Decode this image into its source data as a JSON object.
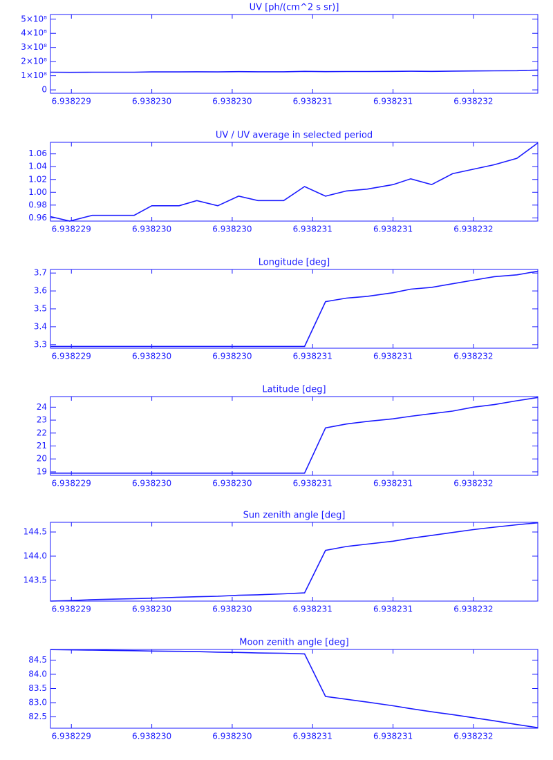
{
  "chart_data": [
    {
      "type": "line",
      "title": "UV [ph/(cm^2 s sr)]",
      "color": "#1a1aff",
      "x": [
        6.93822912,
        6.93822924,
        6.93822938,
        6.93822951,
        6.93822964,
        6.93822975,
        6.93822992,
        6.93823003,
        6.93823016,
        6.93823029,
        6.93823041,
        6.93823057,
        6.9382307,
        6.93823083,
        6.93823096,
        6.93823109,
        6.93823125,
        6.93823136,
        6.93823149,
        6.93823162,
        6.93823175,
        6.93823188,
        6.93823202,
        6.93823215
      ],
      "values": [
        125000000,
        124000000,
        125000000,
        125000000,
        125000000,
        127000000,
        127000000,
        128000000,
        127000000,
        129000000,
        128000000,
        128000000,
        131000000,
        129000000,
        130000000,
        130000000,
        131000000,
        132000000,
        131000000,
        133000000,
        134000000,
        135000000,
        136000000,
        140000000
      ],
      "xlim": [
        6.93822912,
        6.93823215
      ],
      "ylim": [
        -24000000,
        533000000
      ],
      "xticks": [
        {
          "value": 6.93822925,
          "label": "6.938229"
        },
        {
          "value": 6.93822975,
          "label": "6.938230"
        },
        {
          "value": 6.93823025,
          "label": "6.938230"
        },
        {
          "value": 6.93823075,
          "label": "6.938231"
        },
        {
          "value": 6.93823125,
          "label": "6.938231"
        },
        {
          "value": 6.93823175,
          "label": "6.938232"
        }
      ],
      "yticks": [
        0,
        {
          "value": 100000000,
          "label": "1×10⁸"
        },
        {
          "value": 200000000,
          "label": "2×10⁸"
        },
        {
          "value": 300000000,
          "label": "3×10⁸"
        },
        {
          "value": 400000000,
          "label": "4×10⁸"
        },
        {
          "value": 500000000,
          "label": "5×10⁸"
        }
      ]
    },
    {
      "type": "line",
      "title": "UV / UV average in selected period",
      "color": "#1a1aff",
      "x": [
        6.93822912,
        6.93822924,
        6.93822938,
        6.93822951,
        6.93822964,
        6.93822975,
        6.93822992,
        6.93823003,
        6.93823016,
        6.93823029,
        6.93823041,
        6.93823057,
        6.9382307,
        6.93823083,
        6.93823096,
        6.93823109,
        6.93823125,
        6.93823136,
        6.93823149,
        6.93823162,
        6.93823175,
        6.93823188,
        6.93823202,
        6.93823215
      ],
      "values": [
        0.962,
        0.955,
        0.964,
        0.964,
        0.964,
        0.979,
        0.979,
        0.987,
        0.979,
        0.994,
        0.987,
        0.987,
        1.009,
        0.994,
        1.002,
        1.005,
        1.012,
        1.021,
        1.012,
        1.029,
        1.036,
        1.043,
        1.053,
        1.077
      ],
      "xlim": [
        6.93822912,
        6.93823215
      ],
      "ylim": [
        0.955,
        1.078
      ],
      "xticks": [
        {
          "value": 6.93822925,
          "label": "6.938229"
        },
        {
          "value": 6.93822975,
          "label": "6.938230"
        },
        {
          "value": 6.93823025,
          "label": "6.938230"
        },
        {
          "value": 6.93823075,
          "label": "6.938231"
        },
        {
          "value": 6.93823125,
          "label": "6.938231"
        },
        {
          "value": 6.93823175,
          "label": "6.938232"
        }
      ],
      "yticks": [
        {
          "value": 0.96,
          "label": "0.96"
        },
        {
          "value": 0.98,
          "label": "0.98"
        },
        {
          "value": 1.0,
          "label": "1.00"
        },
        {
          "value": 1.02,
          "label": "1.02"
        },
        {
          "value": 1.04,
          "label": "1.04"
        },
        {
          "value": 1.06,
          "label": "1.06"
        }
      ]
    },
    {
      "type": "line",
      "title": "Longitude [deg]",
      "color": "#1a1aff",
      "x": [
        6.93822912,
        6.93822924,
        6.93822938,
        6.93822951,
        6.93822964,
        6.93822975,
        6.93822992,
        6.93823003,
        6.93823016,
        6.93823029,
        6.93823041,
        6.93823057,
        6.9382307,
        6.93823083,
        6.93823096,
        6.93823109,
        6.93823125,
        6.93823136,
        6.93823149,
        6.93823162,
        6.93823175,
        6.93823188,
        6.93823202,
        6.93823215
      ],
      "values": [
        3.29,
        3.29,
        3.29,
        3.29,
        3.29,
        3.29,
        3.29,
        3.29,
        3.29,
        3.29,
        3.29,
        3.29,
        3.29,
        3.54,
        3.56,
        3.57,
        3.59,
        3.61,
        3.62,
        3.64,
        3.66,
        3.68,
        3.69,
        3.71
      ],
      "xlim": [
        6.93822912,
        6.93823215
      ],
      "ylim": [
        3.28,
        3.72
      ],
      "xticks": [
        {
          "value": 6.93822925,
          "label": "6.938229"
        },
        {
          "value": 6.93822975,
          "label": "6.938230"
        },
        {
          "value": 6.93823025,
          "label": "6.938230"
        },
        {
          "value": 6.93823075,
          "label": "6.938231"
        },
        {
          "value": 6.93823125,
          "label": "6.938231"
        },
        {
          "value": 6.93823175,
          "label": "6.938232"
        }
      ],
      "yticks": [
        3.3,
        3.4,
        3.5,
        3.6,
        3.7
      ]
    },
    {
      "type": "line",
      "title": "Latitude [deg]",
      "color": "#1a1aff",
      "x": [
        6.93822912,
        6.93822924,
        6.93822938,
        6.93822951,
        6.93822964,
        6.93822975,
        6.93822992,
        6.93823003,
        6.93823016,
        6.93823029,
        6.93823041,
        6.93823057,
        6.9382307,
        6.93823083,
        6.93823096,
        6.93823109,
        6.93823125,
        6.93823136,
        6.93823149,
        6.93823162,
        6.93823175,
        6.93823188,
        6.93823202,
        6.93823215
      ],
      "values": [
        18.9,
        18.9,
        18.9,
        18.9,
        18.9,
        18.9,
        18.9,
        18.9,
        18.9,
        18.9,
        18.9,
        18.9,
        18.9,
        22.4,
        22.7,
        22.9,
        23.1,
        23.3,
        23.5,
        23.7,
        24.0,
        24.2,
        24.5,
        24.75
      ],
      "xlim": [
        6.93822912,
        6.93823215
      ],
      "ylim": [
        18.73,
        24.82
      ],
      "xticks": [
        {
          "value": 6.93822925,
          "label": "6.938229"
        },
        {
          "value": 6.93822975,
          "label": "6.938230"
        },
        {
          "value": 6.93823025,
          "label": "6.938230"
        },
        {
          "value": 6.93823075,
          "label": "6.938231"
        },
        {
          "value": 6.93823125,
          "label": "6.938231"
        },
        {
          "value": 6.93823175,
          "label": "6.938232"
        }
      ],
      "yticks": [
        19,
        20,
        21,
        22,
        23,
        24
      ]
    },
    {
      "type": "line",
      "title": "Sun zenith angle [deg]",
      "color": "#1a1aff",
      "x": [
        6.93822912,
        6.93822924,
        6.93822938,
        6.93822951,
        6.93822964,
        6.93822975,
        6.93822992,
        6.93823003,
        6.93823016,
        6.93823029,
        6.93823041,
        6.93823057,
        6.9382307,
        6.93823083,
        6.93823096,
        6.93823109,
        6.93823125,
        6.93823136,
        6.93823149,
        6.93823162,
        6.93823175,
        6.93823188,
        6.93823202,
        6.93823215
      ],
      "values": [
        143.07,
        143.08,
        143.1,
        143.11,
        143.12,
        143.13,
        143.15,
        143.16,
        143.17,
        143.19,
        143.2,
        143.22,
        143.24,
        144.12,
        144.2,
        144.25,
        144.31,
        144.37,
        144.43,
        144.49,
        144.55,
        144.6,
        144.65,
        144.69
      ],
      "xlim": [
        6.93822912,
        6.93823215
      ],
      "ylim": [
        143.07,
        144.7
      ],
      "xticks": [
        {
          "value": 6.93822925,
          "label": "6.938229"
        },
        {
          "value": 6.93822975,
          "label": "6.938230"
        },
        {
          "value": 6.93823025,
          "label": "6.938230"
        },
        {
          "value": 6.93823075,
          "label": "6.938231"
        },
        {
          "value": 6.93823125,
          "label": "6.938231"
        },
        {
          "value": 6.93823175,
          "label": "6.938232"
        }
      ],
      "yticks": [
        143.5,
        {
          "value": 144,
          "label": "144.0"
        },
        144.5
      ]
    },
    {
      "type": "line",
      "title": "Moon zenith angle [deg]",
      "color": "#1a1aff",
      "x": [
        6.93822912,
        6.93822924,
        6.93822938,
        6.93822951,
        6.93822964,
        6.93822975,
        6.93822992,
        6.93823003,
        6.93823016,
        6.93823029,
        6.93823041,
        6.93823057,
        6.9382307,
        6.93823083,
        6.93823096,
        6.93823109,
        6.93823125,
        6.93823136,
        6.93823149,
        6.93823162,
        6.93823175,
        6.93823188,
        6.93823202,
        6.93823215
      ],
      "values": [
        84.87,
        84.86,
        84.85,
        84.84,
        84.83,
        84.82,
        84.81,
        84.8,
        84.78,
        84.77,
        84.75,
        84.74,
        84.72,
        83.22,
        83.12,
        83.02,
        82.89,
        82.79,
        82.68,
        82.58,
        82.47,
        82.36,
        82.23,
        82.12
      ],
      "xlim": [
        6.93822912,
        6.93823215
      ],
      "ylim": [
        82.1,
        84.875
      ],
      "xticks": [
        {
          "value": 6.93822925,
          "label": "6.938229"
        },
        {
          "value": 6.93822975,
          "label": "6.938230"
        },
        {
          "value": 6.93823025,
          "label": "6.938230"
        },
        {
          "value": 6.93823075,
          "label": "6.938231"
        },
        {
          "value": 6.93823125,
          "label": "6.938231"
        },
        {
          "value": 6.93823175,
          "label": "6.938232"
        }
      ],
      "yticks": [
        82.5,
        {
          "value": 83,
          "label": "83.0"
        },
        83.5,
        {
          "value": 84,
          "label": "84.0"
        },
        84.5
      ]
    }
  ]
}
